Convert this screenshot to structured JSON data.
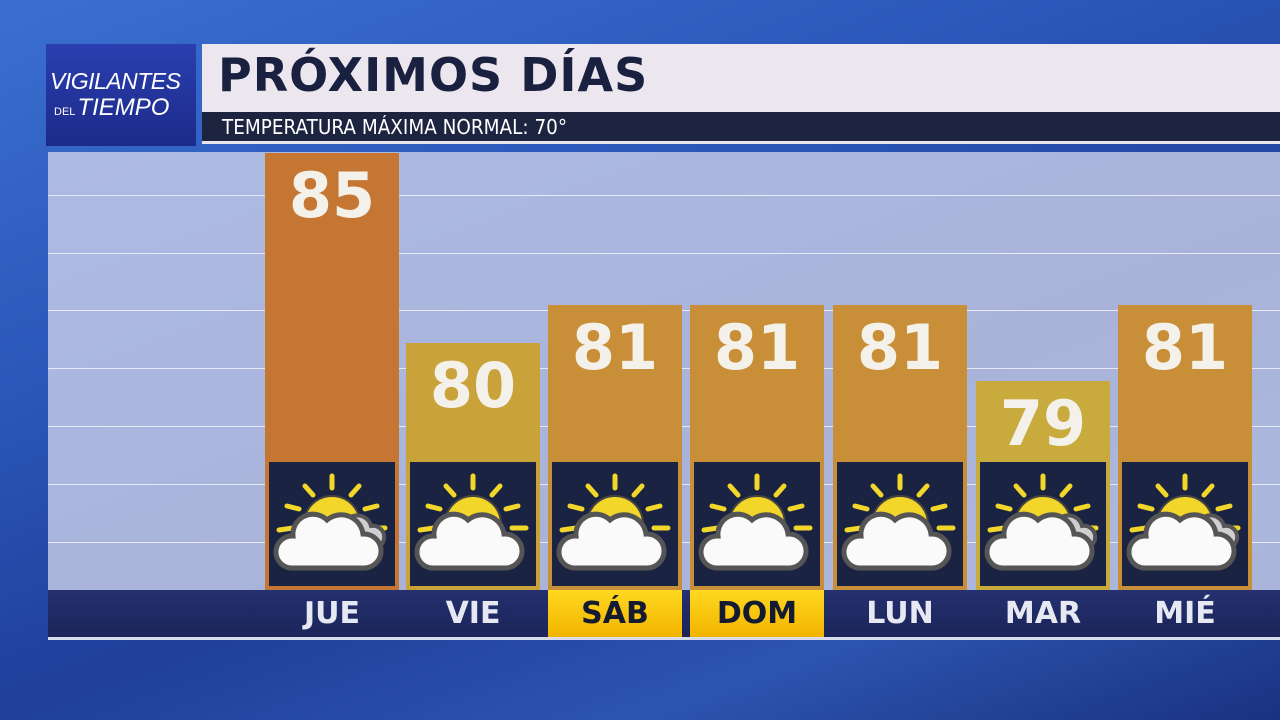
{
  "logo": {
    "line1": "VIGILANTES",
    "line2_small": "DEL",
    "line2": "TIEMPO"
  },
  "header": {
    "title": "PRÓXIMOS DÍAS",
    "subtitle": "TEMPERATURA MÁXIMA NORMAL:  70°"
  },
  "chart_data": {
    "type": "bar",
    "categories": [
      "JUE",
      "VIE",
      "SÁB",
      "DOM",
      "LUN",
      "MAR",
      "MIÉ"
    ],
    "values": [
      85,
      80,
      81,
      81,
      81,
      79,
      81
    ],
    "data_labels": [
      "85",
      "80",
      "81",
      "81",
      "81",
      "79",
      "81"
    ],
    "bar_colors": [
      "#c47632",
      "#c9a33a",
      "#c98f38",
      "#c98f38",
      "#c98f38",
      "#c9aa3c",
      "#c98f38"
    ],
    "icons": [
      "partly-cloudy-extra-cloud-icon",
      "partly-cloudy-icon",
      "partly-cloudy-icon",
      "partly-cloudy-icon",
      "partly-cloudy-icon",
      "partly-cloudy-extra-cloud-icon",
      "partly-cloudy-extra-cloud-icon"
    ],
    "highlighted_days": [
      "SÁB",
      "DOM"
    ],
    "highlight_color": "#ffd820",
    "grid": true,
    "title": "",
    "xlabel": "",
    "ylabel": ""
  }
}
